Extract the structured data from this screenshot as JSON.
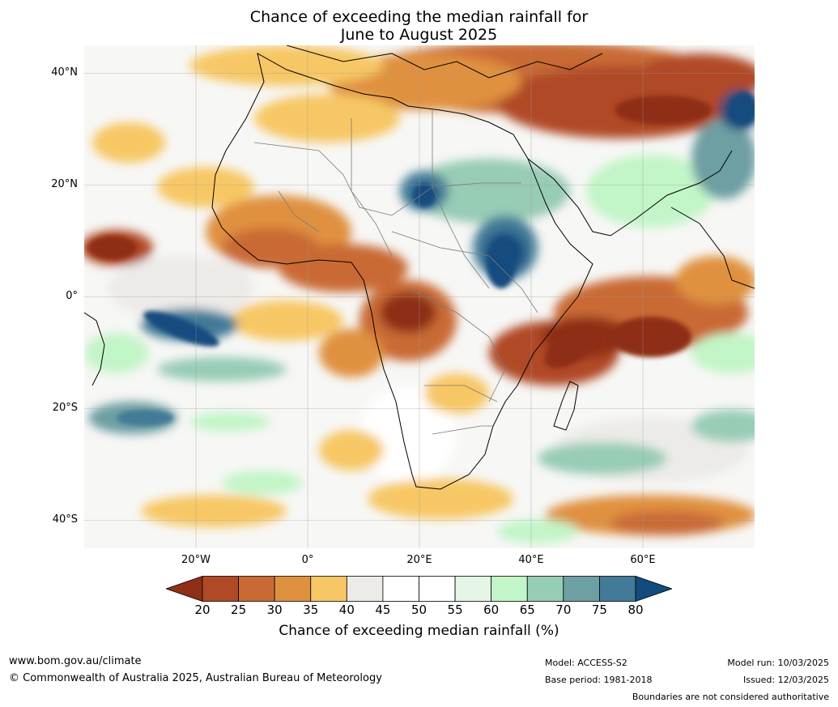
{
  "title": {
    "line1": "Chance of exceeding the median rainfall for",
    "line2": "June to August 2025"
  },
  "map": {
    "lat_labels": [
      "40°N",
      "20°N",
      "0°",
      "20°S",
      "40°S"
    ],
    "lon_labels": [
      "20°W",
      "0°",
      "20°E",
      "40°E",
      "60°E"
    ],
    "extent": {
      "lon": [
        -40,
        80
      ],
      "lat": [
        -45,
        45
      ]
    }
  },
  "colorbar": {
    "ticks": [
      "20",
      "25",
      "30",
      "35",
      "40",
      "45",
      "50",
      "55",
      "60",
      "65",
      "70",
      "75",
      "80"
    ],
    "label": "Chance of exceeding median rainfall (%)",
    "colors": [
      "#8e2f16",
      "#b04a25",
      "#c96a35",
      "#e0913f",
      "#f7c765",
      "#ecebe8",
      "#ffffff",
      "#ffffff",
      "#e5f5e6",
      "#c2f5c7",
      "#97ccb5",
      "#6d9fa3",
      "#437a97",
      "#124c7f"
    ]
  },
  "footer": {
    "website": "www.bom.gov.au/climate",
    "copyright": "© Commonwealth of Australia 2025, Australian Bureau of Meteorology",
    "model": "Model: ACCESS-S2",
    "base_period": "Base period: 1981-2018",
    "model_run": "Model run: 10/03/2025",
    "issued": "Issued: 12/03/2025",
    "disclaimer": "Boundaries are not considered authoritative"
  }
}
